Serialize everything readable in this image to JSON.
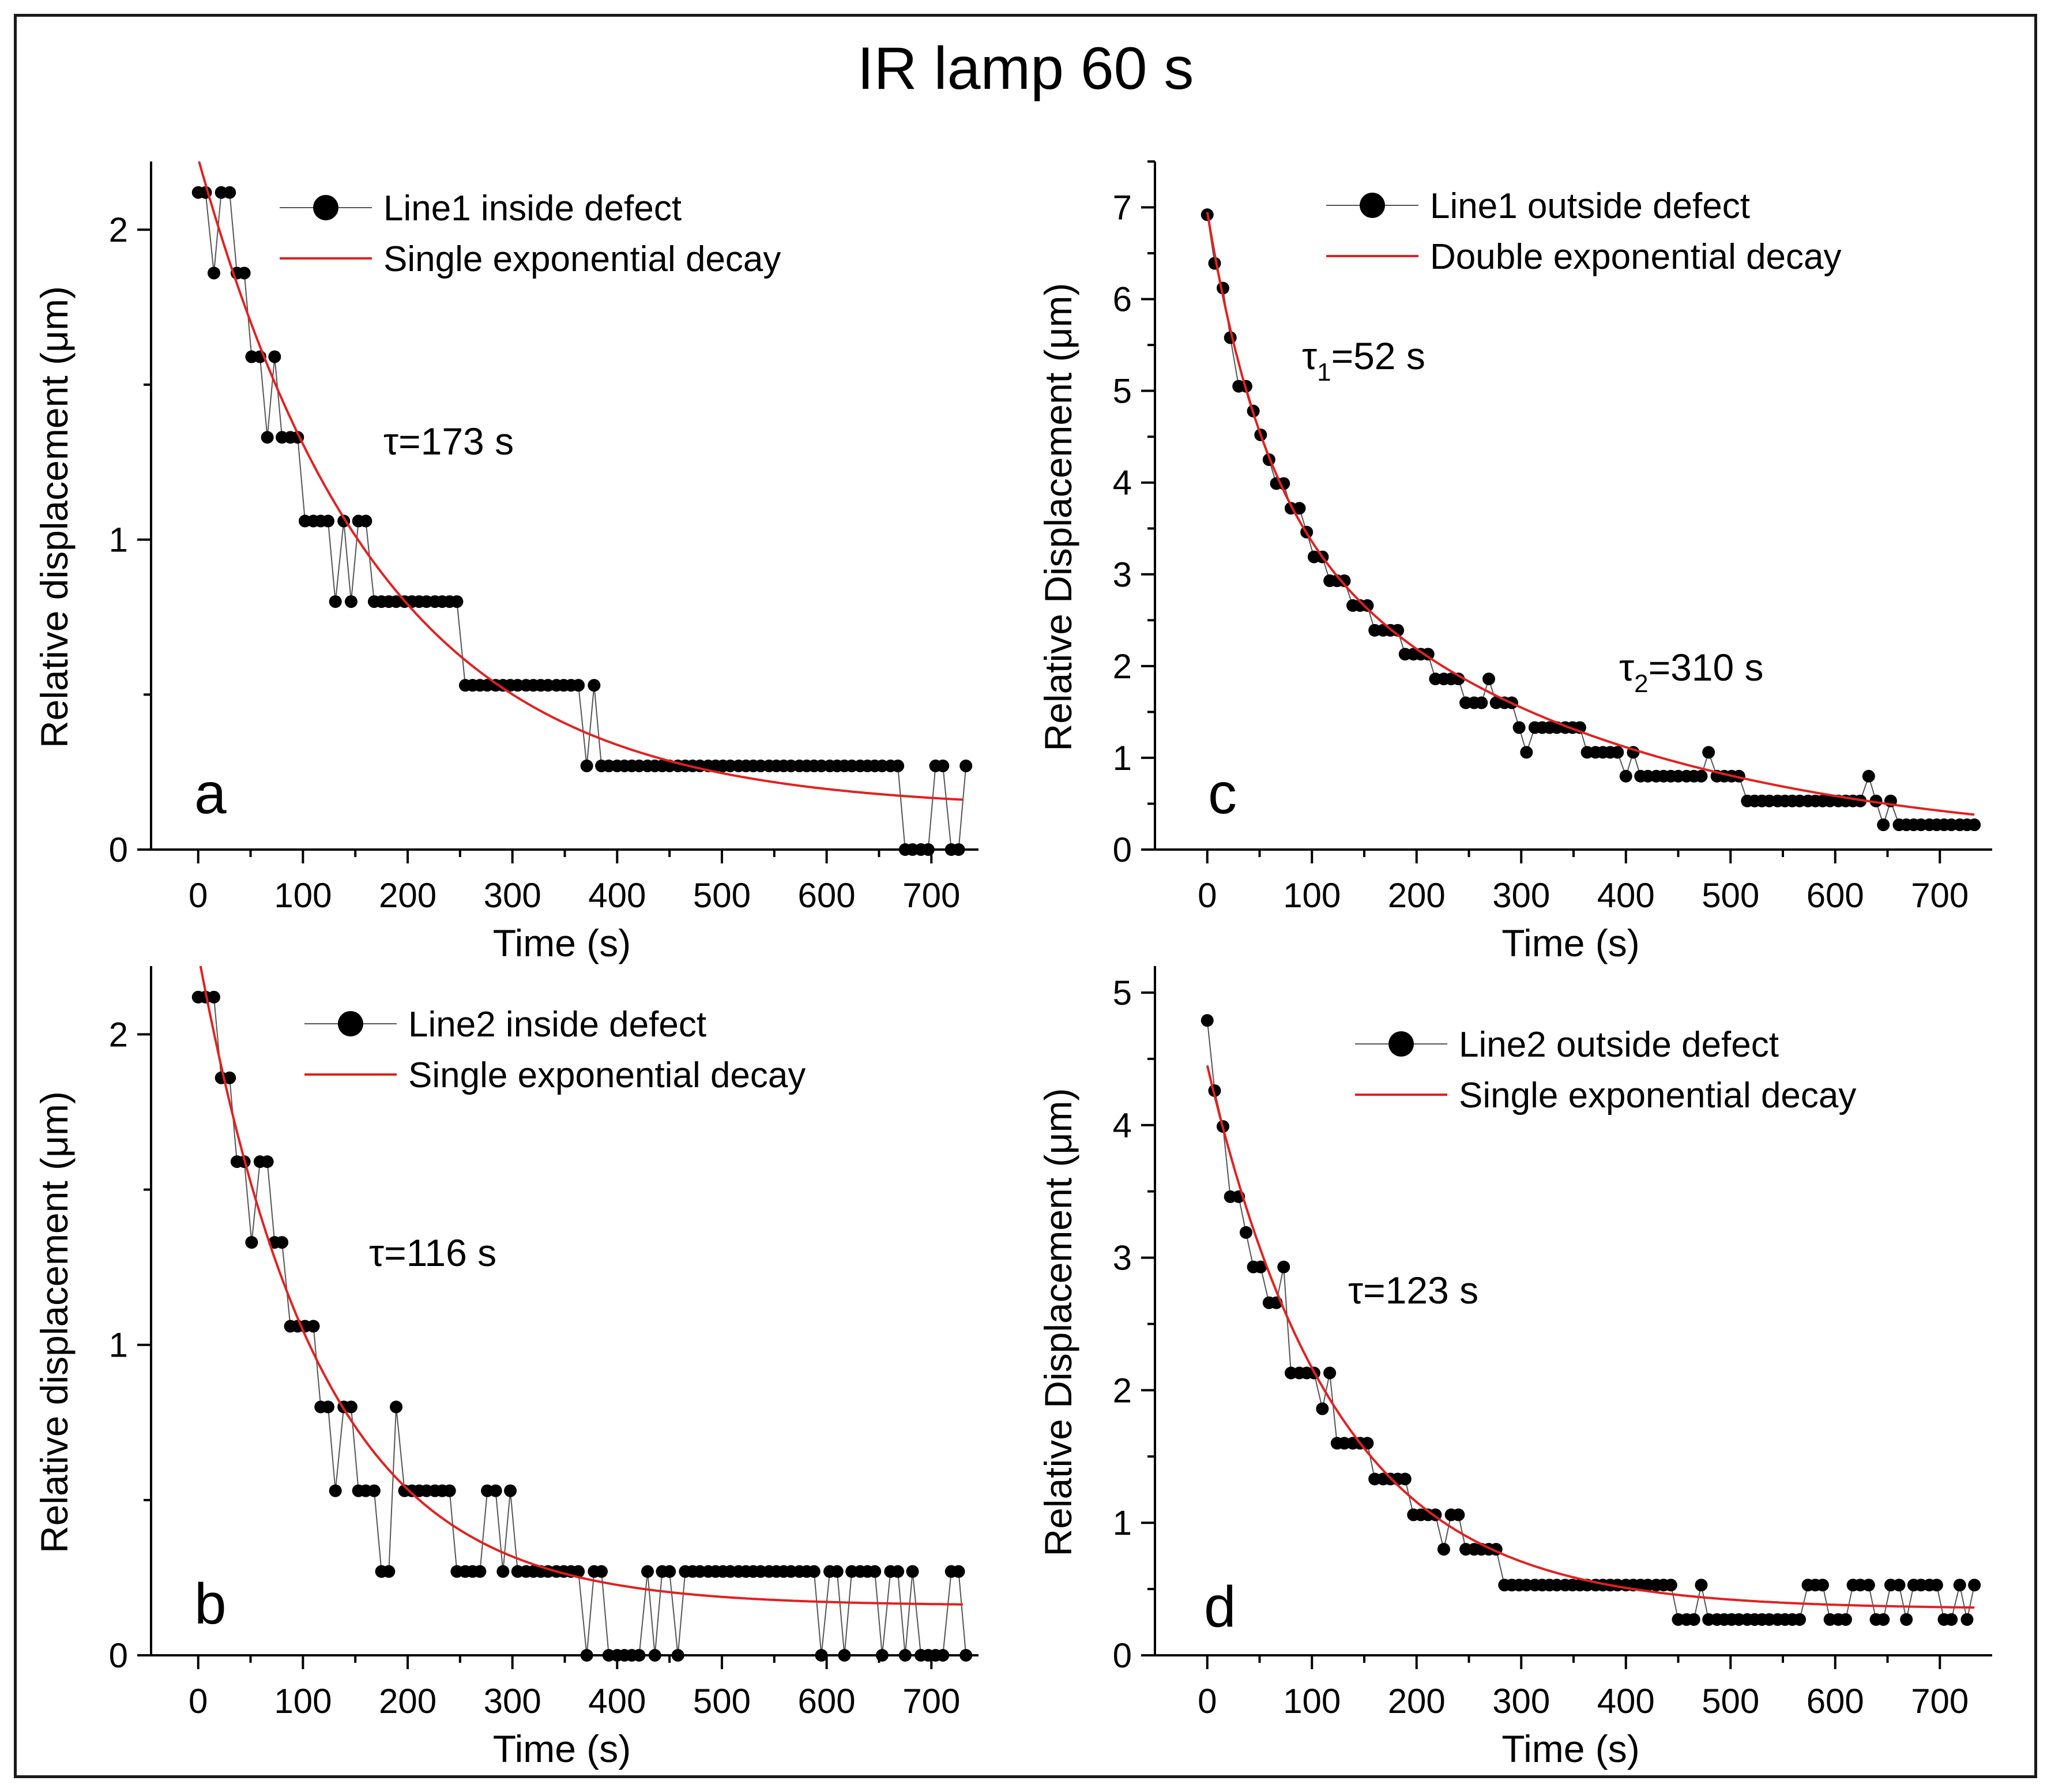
{
  "figure": {
    "title": "IR lamp 60 s"
  },
  "chart_data": [
    {
      "panel_label": "a",
      "type": "scatter",
      "xlabel": "Time (s)",
      "ylabel": "Relative displacement (μm)",
      "xlim": [
        -45,
        745
      ],
      "ylim": [
        0,
        2.22
      ],
      "xticks": [
        "0",
        "100",
        "200",
        "300",
        "400",
        "500",
        "600",
        "700"
      ],
      "yticks": [
        "0",
        "1",
        "2"
      ],
      "annotation": "τ=173 s",
      "series": [
        {
          "name": "Line1 inside defect",
          "type": "line-markers",
          "x": [
            0,
            7,
            15,
            22,
            30,
            37,
            44,
            51,
            59,
            66,
            73,
            80,
            88,
            95,
            102,
            110,
            117,
            124,
            131,
            139,
            146,
            153,
            160,
            168,
            175,
            182,
            189,
            197,
            204,
            211,
            218,
            226,
            233,
            240,
            247,
            255,
            262,
            269,
            276,
            284,
            291,
            298,
            305,
            313,
            320,
            327,
            334,
            342,
            349,
            356,
            363,
            371,
            378,
            385,
            392,
            400,
            407,
            414,
            421,
            429,
            436,
            443,
            450,
            458,
            465,
            472,
            479,
            487,
            494,
            501,
            508,
            516,
            523,
            530,
            537,
            545,
            552,
            559,
            566,
            574,
            581,
            588,
            595,
            603,
            610,
            617,
            624,
            632,
            639,
            646,
            653,
            661,
            668,
            675,
            682,
            690,
            697,
            704,
            711,
            719,
            726,
            733
          ],
          "y": [
            2.12,
            2.12,
            1.86,
            2.12,
            2.12,
            1.86,
            1.86,
            1.59,
            1.59,
            1.33,
            1.59,
            1.33,
            1.33,
            1.33,
            1.06,
            1.06,
            1.06,
            1.06,
            0.8,
            1.06,
            0.8,
            1.06,
            1.06,
            0.8,
            0.8,
            0.8,
            0.8,
            0.8,
            0.8,
            0.8,
            0.8,
            0.8,
            0.8,
            0.8,
            0.8,
            0.53,
            0.53,
            0.53,
            0.53,
            0.53,
            0.53,
            0.53,
            0.53,
            0.53,
            0.53,
            0.53,
            0.53,
            0.53,
            0.53,
            0.53,
            0.53,
            0.27,
            0.53,
            0.27,
            0.27,
            0.27,
            0.27,
            0.27,
            0.27,
            0.27,
            0.27,
            0.27,
            0.27,
            0.27,
            0.27,
            0.27,
            0.27,
            0.27,
            0.27,
            0.27,
            0.27,
            0.27,
            0.27,
            0.27,
            0.27,
            0.27,
            0.27,
            0.27,
            0.27,
            0.27,
            0.27,
            0.27,
            0.27,
            0.27,
            0.27,
            0.27,
            0.27,
            0.27,
            0.27,
            0.27,
            0.27,
            0.27,
            0.27,
            0,
            0,
            0,
            0,
            0.27,
            0.27,
            0,
            0,
            0.27
          ]
        },
        {
          "name": "Single exponential decay",
          "type": "fit",
          "model": {
            "y0": 0.13,
            "components": [
              {
                "A": 2.1,
                "tau": 173
              }
            ]
          },
          "xrange": [
            -4,
            730
          ]
        }
      ]
    },
    {
      "panel_label": "c",
      "type": "scatter",
      "xlabel": "Time (s)",
      "ylabel": "Relative Displacement (μm)",
      "xlim": [
        -50,
        750
      ],
      "ylim": [
        0,
        7.5
      ],
      "xticks": [
        "0",
        "100",
        "200",
        "300",
        "400",
        "500",
        "600",
        "700"
      ],
      "yticks": [
        "0",
        "1",
        "2",
        "3",
        "4",
        "5",
        "6",
        "7"
      ],
      "annotations": [
        {
          "base": "τ",
          "sub": "1",
          "tail": "=52 s"
        },
        {
          "base": "τ",
          "sub": "2",
          "tail": "=310 s"
        }
      ],
      "series": [
        {
          "name": "Line1 outside defect",
          "type": "line-markers",
          "x": [
            0,
            7,
            15,
            22,
            30,
            37,
            44,
            51,
            59,
            66,
            73,
            80,
            88,
            95,
            102,
            110,
            117,
            124,
            131,
            139,
            146,
            153,
            160,
            168,
            175,
            182,
            189,
            197,
            204,
            211,
            218,
            226,
            233,
            240,
            247,
            255,
            262,
            269,
            276,
            284,
            291,
            298,
            305,
            313,
            320,
            327,
            334,
            342,
            349,
            356,
            363,
            371,
            378,
            385,
            392,
            400,
            407,
            414,
            421,
            429,
            436,
            443,
            450,
            458,
            465,
            472,
            479,
            487,
            494,
            501,
            508,
            516,
            523,
            530,
            537,
            545,
            552,
            559,
            566,
            574,
            581,
            588,
            595,
            603,
            610,
            617,
            624,
            632,
            639,
            646,
            653,
            661,
            668,
            675,
            682,
            690,
            697,
            704,
            711,
            719,
            726,
            733
          ],
          "y": [
            6.92,
            6.39,
            6.12,
            5.58,
            5.05,
            5.05,
            4.78,
            4.52,
            4.25,
            3.99,
            3.99,
            3.72,
            3.72,
            3.46,
            3.19,
            3.19,
            2.93,
            2.93,
            2.93,
            2.66,
            2.66,
            2.66,
            2.39,
            2.39,
            2.39,
            2.39,
            2.13,
            2.13,
            2.13,
            2.13,
            1.86,
            1.86,
            1.86,
            1.86,
            1.6,
            1.6,
            1.6,
            1.86,
            1.6,
            1.6,
            1.6,
            1.33,
            1.06,
            1.33,
            1.33,
            1.33,
            1.33,
            1.33,
            1.33,
            1.33,
            1.06,
            1.06,
            1.06,
            1.06,
            1.06,
            0.8,
            1.06,
            0.8,
            0.8,
            0.8,
            0.8,
            0.8,
            0.8,
            0.8,
            0.8,
            0.8,
            1.06,
            0.8,
            0.8,
            0.8,
            0.8,
            0.53,
            0.53,
            0.53,
            0.53,
            0.53,
            0.53,
            0.53,
            0.53,
            0.53,
            0.53,
            0.53,
            0.53,
            0.53,
            0.53,
            0.53,
            0.53,
            0.8,
            0.53,
            0.27,
            0.53,
            0.27,
            0.27,
            0.27,
            0.27,
            0.27,
            0.27,
            0.27,
            0.27,
            0.27,
            0.27,
            0.27
          ]
        },
        {
          "name": "Double exponential decay",
          "type": "fit",
          "model": {
            "y0": 0,
            "components": [
              {
                "A": 2.9,
                "tau": 52
              },
              {
                "A": 4.05,
                "tau": 310
              }
            ]
          },
          "xrange": [
            0,
            733
          ]
        }
      ]
    },
    {
      "panel_label": "b",
      "type": "scatter",
      "xlabel": "Time (s)",
      "ylabel": "Relative displacement (μm)",
      "xlim": [
        -45,
        745
      ],
      "ylim": [
        0,
        2.22
      ],
      "xticks": [
        "0",
        "100",
        "200",
        "300",
        "400",
        "500",
        "600",
        "700"
      ],
      "yticks": [
        "0",
        "1",
        "2"
      ],
      "annotation": "τ=116 s",
      "series": [
        {
          "name": "Line2 inside defect",
          "type": "line-markers",
          "x": [
            0,
            7,
            15,
            22,
            30,
            37,
            44,
            51,
            59,
            66,
            73,
            80,
            88,
            95,
            102,
            110,
            117,
            124,
            131,
            139,
            146,
            153,
            160,
            168,
            175,
            182,
            189,
            197,
            204,
            211,
            218,
            226,
            233,
            240,
            247,
            255,
            262,
            269,
            276,
            284,
            291,
            298,
            305,
            313,
            320,
            327,
            334,
            342,
            349,
            356,
            363,
            371,
            378,
            385,
            392,
            400,
            407,
            414,
            421,
            429,
            436,
            443,
            450,
            458,
            465,
            472,
            479,
            487,
            494,
            501,
            508,
            516,
            523,
            530,
            537,
            545,
            552,
            559,
            566,
            574,
            581,
            588,
            595,
            603,
            610,
            617,
            624,
            632,
            639,
            646,
            653,
            661,
            668,
            675,
            682,
            690,
            697,
            704,
            711,
            719,
            726,
            733
          ],
          "y": [
            2.12,
            2.12,
            2.12,
            1.86,
            1.86,
            1.59,
            1.59,
            1.33,
            1.59,
            1.59,
            1.33,
            1.33,
            1.06,
            1.06,
            1.06,
            1.06,
            0.8,
            0.8,
            0.53,
            0.8,
            0.8,
            0.53,
            0.53,
            0.53,
            0.27,
            0.27,
            0.8,
            0.53,
            0.53,
            0.53,
            0.53,
            0.53,
            0.53,
            0.53,
            0.27,
            0.27,
            0.27,
            0.27,
            0.53,
            0.53,
            0.27,
            0.53,
            0.27,
            0.27,
            0.27,
            0.27,
            0.27,
            0.27,
            0.27,
            0.27,
            0.27,
            0,
            0.27,
            0.27,
            0,
            0,
            0,
            0,
            0,
            0.27,
            0,
            0.27,
            0.27,
            0,
            0.27,
            0.27,
            0.27,
            0.27,
            0.27,
            0.27,
            0.27,
            0.27,
            0.27,
            0.27,
            0.27,
            0.27,
            0.27,
            0.27,
            0.27,
            0.27,
            0.27,
            0.27,
            0,
            0.27,
            0.27,
            0,
            0.27,
            0.27,
            0.27,
            0.27,
            0,
            0.27,
            0.27,
            0,
            0.27,
            0,
            0,
            0,
            0,
            0.27,
            0.27,
            0
          ]
        },
        {
          "name": "Single exponential decay",
          "type": "fit",
          "model": {
            "y0": 0.16,
            "components": [
              {
                "A": 2.1,
                "tau": 116
              }
            ]
          },
          "xrange": [
            -4,
            730
          ]
        }
      ]
    },
    {
      "panel_label": "d",
      "type": "scatter",
      "xlabel": "Time (s)",
      "ylabel": "Relative Displacement (μm)",
      "xlim": [
        -50,
        750
      ],
      "ylim": [
        0,
        5.2
      ],
      "xticks": [
        "0",
        "100",
        "200",
        "300",
        "400",
        "500",
        "600",
        "700"
      ],
      "yticks": [
        "0",
        "1",
        "2",
        "3",
        "4",
        "5"
      ],
      "annotation": "τ=123 s",
      "series": [
        {
          "name": "Line2 outside defect",
          "type": "line-markers",
          "x": [
            0,
            7,
            15,
            22,
            30,
            37,
            44,
            51,
            59,
            66,
            73,
            80,
            88,
            95,
            102,
            110,
            117,
            124,
            131,
            139,
            146,
            153,
            160,
            168,
            175,
            182,
            189,
            197,
            204,
            211,
            218,
            226,
            233,
            240,
            247,
            255,
            262,
            269,
            276,
            284,
            291,
            298,
            305,
            313,
            320,
            327,
            334,
            342,
            349,
            356,
            363,
            371,
            378,
            385,
            392,
            400,
            407,
            414,
            421,
            429,
            436,
            443,
            450,
            458,
            465,
            472,
            479,
            487,
            494,
            501,
            508,
            516,
            523,
            530,
            537,
            545,
            552,
            559,
            566,
            574,
            581,
            588,
            595,
            603,
            610,
            617,
            624,
            632,
            639,
            646,
            653,
            661,
            668,
            675,
            682,
            690,
            697,
            704,
            711,
            719,
            726,
            733
          ],
          "y": [
            4.79,
            4.26,
            3.99,
            3.46,
            3.46,
            3.19,
            2.93,
            2.93,
            2.66,
            2.66,
            2.93,
            2.13,
            2.13,
            2.13,
            2.13,
            1.86,
            2.13,
            1.6,
            1.6,
            1.6,
            1.6,
            1.6,
            1.33,
            1.33,
            1.33,
            1.33,
            1.33,
            1.06,
            1.06,
            1.06,
            1.06,
            0.8,
            1.06,
            1.06,
            0.8,
            0.8,
            0.8,
            0.8,
            0.8,
            0.53,
            0.53,
            0.53,
            0.53,
            0.53,
            0.53,
            0.53,
            0.53,
            0.53,
            0.53,
            0.53,
            0.53,
            0.53,
            0.53,
            0.53,
            0.53,
            0.53,
            0.53,
            0.53,
            0.53,
            0.53,
            0.53,
            0.53,
            0.27,
            0.27,
            0.27,
            0.53,
            0.27,
            0.27,
            0.27,
            0.27,
            0.27,
            0.27,
            0.27,
            0.27,
            0.27,
            0.27,
            0.27,
            0.27,
            0.27,
            0.53,
            0.53,
            0.53,
            0.27,
            0.27,
            0.27,
            0.53,
            0.53,
            0.53,
            0.27,
            0.27,
            0.53,
            0.53,
            0.27,
            0.53,
            0.53,
            0.53,
            0.53,
            0.27,
            0.27,
            0.53,
            0.27,
            0.53
          ]
        },
        {
          "name": "Single exponential decay",
          "type": "fit",
          "model": {
            "y0": 0.35,
            "components": [
              {
                "A": 4.1,
                "tau": 123
              }
            ]
          },
          "xrange": [
            0,
            733
          ]
        }
      ]
    }
  ]
}
